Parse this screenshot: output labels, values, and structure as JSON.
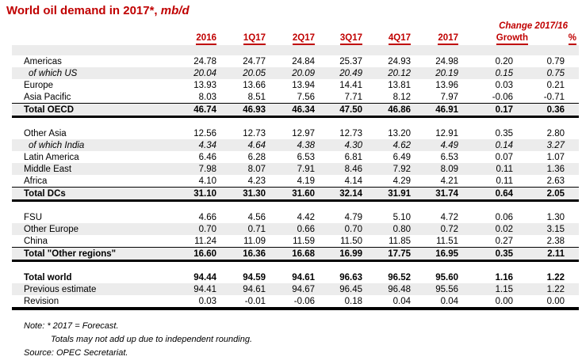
{
  "title": {
    "text": "World oil demand in 2017*,",
    "unit": "mb/d"
  },
  "change_header": "Change 2017/16",
  "columns": [
    "2016",
    "1Q17",
    "2Q17",
    "3Q17",
    "4Q17",
    "2017",
    "Growth",
    "%"
  ],
  "blocks": [
    {
      "name": "oecd",
      "rows": [
        {
          "label": "Americas",
          "style": "normal",
          "shaded": false,
          "topline": false,
          "values": [
            "24.78",
            "24.77",
            "24.84",
            "25.37",
            "24.93",
            "24.98",
            "0.20",
            "0.79"
          ]
        },
        {
          "label": "of which US",
          "style": "italic",
          "shaded": true,
          "topline": false,
          "values": [
            "20.04",
            "20.05",
            "20.09",
            "20.49",
            "20.12",
            "20.19",
            "0.15",
            "0.75"
          ]
        },
        {
          "label": "Europe",
          "style": "normal",
          "shaded": false,
          "topline": false,
          "values": [
            "13.93",
            "13.66",
            "13.94",
            "14.41",
            "13.81",
            "13.96",
            "0.03",
            "0.21"
          ]
        },
        {
          "label": "Asia Pacific",
          "style": "normal",
          "shaded": false,
          "topline": false,
          "values": [
            "8.03",
            "8.51",
            "7.56",
            "7.71",
            "8.12",
            "7.97",
            "-0.06",
            "-0.71"
          ]
        },
        {
          "label": "Total OECD",
          "style": "total",
          "shaded": true,
          "topline": true,
          "values": [
            "46.74",
            "46.93",
            "46.34",
            "47.50",
            "46.86",
            "46.91",
            "0.17",
            "0.36"
          ]
        }
      ]
    },
    {
      "name": "developing-countries",
      "rows": [
        {
          "label": "Other Asia",
          "style": "normal",
          "shaded": false,
          "topline": false,
          "values": [
            "12.56",
            "12.73",
            "12.97",
            "12.73",
            "13.20",
            "12.91",
            "0.35",
            "2.80"
          ]
        },
        {
          "label": "of which India",
          "style": "italic",
          "shaded": true,
          "topline": false,
          "values": [
            "4.34",
            "4.64",
            "4.38",
            "4.30",
            "4.62",
            "4.49",
            "0.14",
            "3.27"
          ]
        },
        {
          "label": "Latin America",
          "style": "normal",
          "shaded": false,
          "topline": false,
          "values": [
            "6.46",
            "6.28",
            "6.53",
            "6.81",
            "6.49",
            "6.53",
            "0.07",
            "1.07"
          ]
        },
        {
          "label": "Middle East",
          "style": "normal",
          "shaded": true,
          "topline": false,
          "values": [
            "7.98",
            "8.07",
            "7.91",
            "8.46",
            "7.92",
            "8.09",
            "0.11",
            "1.36"
          ]
        },
        {
          "label": "Africa",
          "style": "normal",
          "shaded": false,
          "topline": false,
          "values": [
            "4.10",
            "4.23",
            "4.19",
            "4.14",
            "4.29",
            "4.21",
            "0.11",
            "2.63"
          ]
        },
        {
          "label": "Total DCs",
          "style": "total",
          "shaded": true,
          "topline": true,
          "values": [
            "31.10",
            "31.30",
            "31.60",
            "32.14",
            "31.91",
            "31.74",
            "0.64",
            "2.05"
          ]
        }
      ]
    },
    {
      "name": "other-regions",
      "rows": [
        {
          "label": "FSU",
          "style": "normal",
          "shaded": false,
          "topline": false,
          "values": [
            "4.66",
            "4.56",
            "4.42",
            "4.79",
            "5.10",
            "4.72",
            "0.06",
            "1.30"
          ]
        },
        {
          "label": "Other Europe",
          "style": "normal",
          "shaded": true,
          "topline": false,
          "values": [
            "0.70",
            "0.71",
            "0.66",
            "0.70",
            "0.80",
            "0.72",
            "0.02",
            "3.15"
          ]
        },
        {
          "label": "China",
          "style": "normal",
          "shaded": false,
          "topline": false,
          "values": [
            "11.24",
            "11.09",
            "11.59",
            "11.50",
            "11.85",
            "11.51",
            "0.27",
            "2.38"
          ]
        },
        {
          "label": "Total \"Other regions\"",
          "style": "total",
          "shaded": true,
          "topline": true,
          "values": [
            "16.60",
            "16.36",
            "16.68",
            "16.99",
            "17.75",
            "16.95",
            "0.35",
            "2.11"
          ]
        }
      ]
    },
    {
      "name": "world",
      "rows": [
        {
          "label": "Total world",
          "style": "total",
          "shaded": false,
          "topline": false,
          "values": [
            "94.44",
            "94.59",
            "94.61",
            "96.63",
            "96.52",
            "95.60",
            "1.16",
            "1.22"
          ]
        },
        {
          "label": "Previous estimate",
          "style": "normal",
          "shaded": true,
          "topline": false,
          "values": [
            "94.41",
            "94.61",
            "94.67",
            "96.45",
            "96.48",
            "95.56",
            "1.15",
            "1.22"
          ]
        },
        {
          "label": "Revision",
          "style": "normal",
          "shaded": false,
          "topline": false,
          "values": [
            "0.03",
            "-0.01",
            "-0.06",
            "0.18",
            "0.04",
            "0.04",
            "0.00",
            "0.00"
          ]
        }
      ]
    }
  ],
  "notes": [
    "Note: * 2017 = Forecast.",
    "Totals may not add up due to independent rounding.",
    "Source: OPEC Secretariat."
  ],
  "colors": {
    "accent": "#C00000",
    "row_shade": "#ECECEC"
  }
}
